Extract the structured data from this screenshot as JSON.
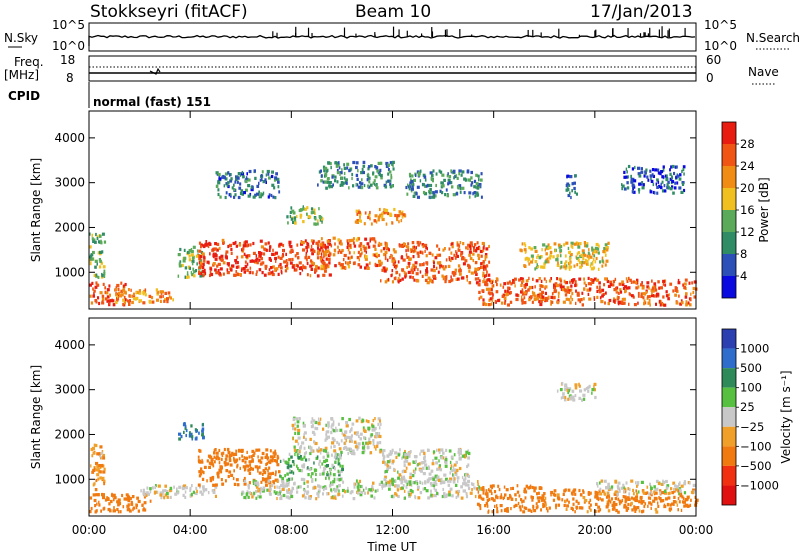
{
  "header": {
    "station": "Stokkseyri (fitACF)",
    "beam": "Beam 10",
    "date": "17/Jan/2013"
  },
  "aux_panels": {
    "nsky_label": "N.Sky",
    "nsearch_label": "N.Search",
    "nsky_ticks": [
      "10^5",
      "10^0"
    ],
    "nsky_right_ticks": [
      "10^5",
      "10^0"
    ],
    "freq_label_line1": "Freq.",
    "freq_label_line2": "[MHz]",
    "freq_ticks": [
      "18",
      "8"
    ],
    "nave_label": "Nave",
    "nave_ticks": [
      "60",
      "0"
    ],
    "cpid_label": "CPID",
    "cpid_text": "normal (fast) 151"
  },
  "colors": {
    "power_scale": [
      "#0a0ae0",
      "#2c50b8",
      "#2f8c64",
      "#5aaa5a",
      "#f0c020",
      "#f08c14",
      "#f05514",
      "#e81c10"
    ],
    "velocity_scale": [
      "#2b3fb0",
      "#2f6dcc",
      "#2f8a5a",
      "#58c040",
      "#c8c8c8",
      "#f0a028",
      "#f07a10",
      "#f03010",
      "#e01010"
    ]
  },
  "chart_data": [
    {
      "type": "heatmap",
      "name": "power",
      "xlabel": "Time UT",
      "ylabel": "Slant Range [km]",
      "xlim": [
        0,
        24
      ],
      "ylim": [
        180,
        4600
      ],
      "x_tick_labels": [
        "00:00",
        "04:00",
        "08:00",
        "12:00",
        "16:00",
        "20:00",
        "00:00"
      ],
      "x_tick_values": [
        0,
        4,
        8,
        12,
        16,
        20,
        24
      ],
      "y_tick_values": [
        1000,
        2000,
        3000,
        4000
      ],
      "y_tick_labels": [
        "1000",
        "2000",
        "3000",
        "4000"
      ],
      "colorbar": {
        "label": "Power [dB]",
        "range": [
          0,
          32
        ],
        "tick_values": [
          4,
          8,
          12,
          16,
          20,
          24,
          28
        ],
        "tick_labels": [
          "4",
          "8",
          "12",
          "16",
          "20",
          "24",
          "28"
        ]
      },
      "regions": [
        {
          "t": [
            0.0,
            1.6
          ],
          "r": [
            300,
            800
          ],
          "v": 28
        },
        {
          "t": [
            1.0,
            3.3
          ],
          "r": [
            350,
            650
          ],
          "v": 22
        },
        {
          "t": [
            0.0,
            0.6
          ],
          "r": [
            900,
            1900
          ],
          "v": 14
        },
        {
          "t": [
            3.5,
            4.5
          ],
          "r": [
            900,
            1600
          ],
          "v": 14
        },
        {
          "t": [
            4.3,
            9.5
          ],
          "r": [
            950,
            1750
          ],
          "v": 28
        },
        {
          "t": [
            9.0,
            11.5
          ],
          "r": [
            1100,
            1800
          ],
          "v": 24
        },
        {
          "t": [
            11.5,
            15.8
          ],
          "r": [
            800,
            1700
          ],
          "v": 26
        },
        {
          "t": [
            10.5,
            12.5
          ],
          "r": [
            2100,
            2450
          ],
          "v": 22
        },
        {
          "t": [
            9.0,
            12.0
          ],
          "r": [
            2900,
            3500
          ],
          "v": 10
        },
        {
          "t": [
            12.5,
            15.5
          ],
          "r": [
            2700,
            3300
          ],
          "v": 10
        },
        {
          "t": [
            15.3,
            24.0
          ],
          "r": [
            300,
            900
          ],
          "v": 26
        },
        {
          "t": [
            17.0,
            20.5
          ],
          "r": [
            1100,
            1700
          ],
          "v": 18
        },
        {
          "t": [
            18.8,
            19.3
          ],
          "r": [
            2700,
            3200
          ],
          "v": 6
        },
        {
          "t": [
            5.0,
            7.5
          ],
          "r": [
            2700,
            3300
          ],
          "v": 8
        },
        {
          "t": [
            21.0,
            23.5
          ],
          "r": [
            2800,
            3400
          ],
          "v": 6
        },
        {
          "t": [
            7.8,
            9.2
          ],
          "r": [
            2100,
            2500
          ],
          "v": 14
        }
      ]
    },
    {
      "type": "heatmap",
      "name": "velocity",
      "xlabel": "Time UT",
      "ylabel": "Slant Range [km]",
      "xlim": [
        0,
        24
      ],
      "ylim": [
        180,
        4600
      ],
      "x_tick_labels": [
        "00:00",
        "04:00",
        "08:00",
        "12:00",
        "16:00",
        "20:00",
        "00:00"
      ],
      "x_tick_values": [
        0,
        4,
        8,
        12,
        16,
        20,
        24
      ],
      "y_tick_values": [
        1000,
        2000,
        3000,
        4000
      ],
      "y_tick_labels": [
        "1000",
        "2000",
        "3000",
        "4000"
      ],
      "colorbar": {
        "label": "Velocity [m s⁻¹]",
        "tick_labels": [
          "1000",
          "500",
          "100",
          "25",
          "−25",
          "−100",
          "−500",
          "−1000"
        ]
      },
      "regions": [
        {
          "t": [
            0.0,
            2.5
          ],
          "r": [
            300,
            700
          ],
          "v": -300
        },
        {
          "t": [
            0.0,
            0.6
          ],
          "r": [
            800,
            1800
          ],
          "v": -100
        },
        {
          "t": [
            2.0,
            5.0
          ],
          "r": [
            600,
            900
          ],
          "v": 0
        },
        {
          "t": [
            4.3,
            7.5
          ],
          "r": [
            900,
            1700
          ],
          "v": -300
        },
        {
          "t": [
            6.0,
            15.5
          ],
          "r": [
            600,
            1000
          ],
          "v": 0
        },
        {
          "t": [
            8.0,
            11.5
          ],
          "r": [
            1600,
            2400
          ],
          "v": 0
        },
        {
          "t": [
            11.5,
            15.0
          ],
          "r": [
            900,
            1700
          ],
          "v": 0
        },
        {
          "t": [
            15.3,
            18.0
          ],
          "r": [
            300,
            900
          ],
          "v": -300
        },
        {
          "t": [
            18.0,
            24.0
          ],
          "r": [
            300,
            800
          ],
          "v": -200
        },
        {
          "t": [
            18.5,
            20.0
          ],
          "r": [
            2800,
            3200
          ],
          "v": 0
        },
        {
          "t": [
            20.0,
            24.0
          ],
          "r": [
            700,
            1000
          ],
          "v": 0
        },
        {
          "t": [
            7.5,
            10.0
          ],
          "r": [
            1000,
            1600
          ],
          "v": 60
        },
        {
          "t": [
            3.5,
            4.5
          ],
          "r": [
            1900,
            2300
          ],
          "v": 600
        }
      ]
    }
  ]
}
